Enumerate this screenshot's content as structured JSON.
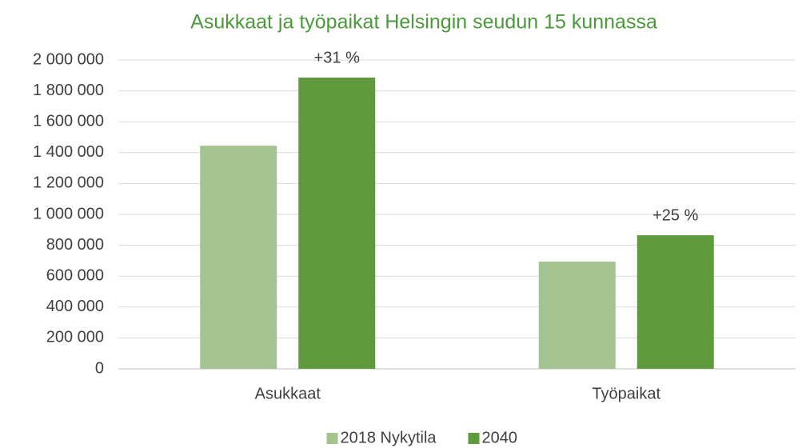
{
  "chart_data": {
    "type": "bar",
    "title": "Asukkaat ja työpaikat Helsingin seudun 15 kunnassa",
    "categories": [
      "Asukkaat",
      "Työpaikat"
    ],
    "series": [
      {
        "name": "2018 Nykytila",
        "color": "#a3c490",
        "values": [
          1445000,
          694000
        ]
      },
      {
        "name": "2040",
        "color": "#5f9a3c",
        "values": [
          1886000,
          865000
        ]
      }
    ],
    "annotations": [
      "+31 %",
      "+25 %"
    ],
    "ylim": [
      0,
      2000000
    ],
    "yticks": [
      0,
      {
        "value": 200000,
        "label": "200 000"
      },
      {
        "value": 400000,
        "label": "400 000"
      },
      {
        "value": 600000,
        "label": "600 000"
      },
      {
        "value": 800000,
        "label": "800 000"
      },
      {
        "value": 1000000,
        "label": "1 000 000"
      },
      {
        "value": 1200000,
        "label": "1 200 000"
      },
      {
        "value": 1400000,
        "label": "1 400 000"
      },
      {
        "value": 1600000,
        "label": "1 600 000"
      },
      {
        "value": 1800000,
        "label": "1 800 000"
      },
      {
        "value": 2000000,
        "label": "2 000 000"
      }
    ],
    "grid": true,
    "legend": "bottom",
    "title_color": "#4a9a3a"
  }
}
